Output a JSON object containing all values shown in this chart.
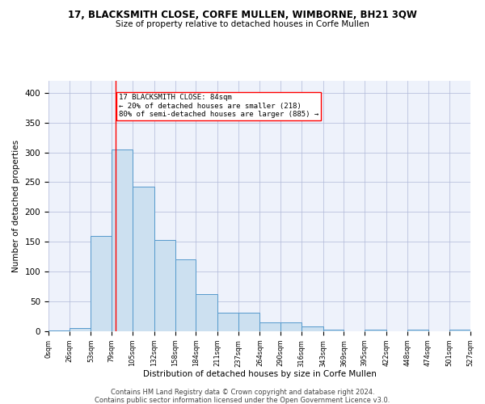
{
  "title1": "17, BLACKSMITH CLOSE, CORFE MULLEN, WIMBORNE, BH21 3QW",
  "title2": "Size of property relative to detached houses in Corfe Mullen",
  "xlabel": "Distribution of detached houses by size in Corfe Mullen",
  "ylabel": "Number of detached properties",
  "footer1": "Contains HM Land Registry data © Crown copyright and database right 2024.",
  "footer2": "Contains public sector information licensed under the Open Government Licence v3.0.",
  "bar_color": "#cce0f0",
  "bar_edge_color": "#5599cc",
  "grid_color": "#b0b8d8",
  "bg_color": "#eef2fb",
  "annotation_text": "17 BLACKSMITH CLOSE: 84sqm\n← 20% of detached houses are smaller (218)\n80% of semi-detached houses are larger (885) →",
  "red_line_x": 84,
  "bin_edges": [
    0,
    26,
    53,
    79,
    105,
    132,
    158,
    184,
    211,
    237,
    264,
    290,
    316,
    343,
    369,
    395,
    422,
    448,
    474,
    501,
    527
  ],
  "bin_labels": [
    "0sqm",
    "26sqm",
    "53sqm",
    "79sqm",
    "105sqm",
    "132sqm",
    "158sqm",
    "184sqm",
    "211sqm",
    "237sqm",
    "264sqm",
    "290sqm",
    "316sqm",
    "343sqm",
    "369sqm",
    "395sqm",
    "422sqm",
    "448sqm",
    "474sqm",
    "501sqm",
    "527sqm"
  ],
  "counts": [
    2,
    5,
    160,
    305,
    243,
    153,
    120,
    62,
    31,
    31,
    15,
    15,
    8,
    3,
    0,
    3,
    0,
    3,
    0,
    3
  ],
  "ylim": [
    0,
    420
  ],
  "yticks": [
    0,
    50,
    100,
    150,
    200,
    250,
    300,
    350,
    400
  ]
}
